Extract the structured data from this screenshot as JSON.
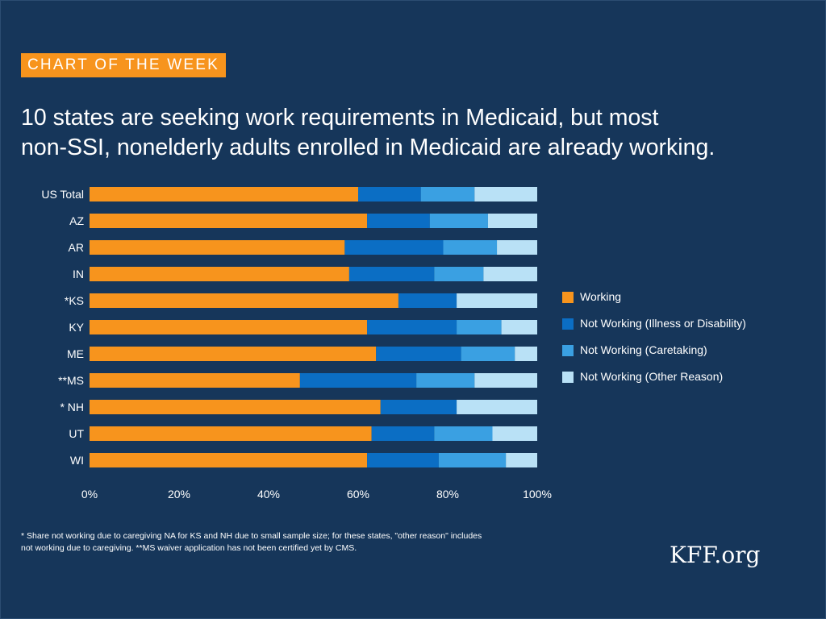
{
  "badge": "CHART OF THE WEEK",
  "headline": {
    "line1": "10 states are seeking work requirements in Medicaid, but most",
    "line2": "non-SSI, nonelderly adults enrolled in Medicaid are already working."
  },
  "footnote": {
    "line1": "* Share not working due to caregiving NA for KS and NH due to small sample size; for these states, \"other reason\" includes",
    "line2": "not working due to caregiving.  **MS waiver application has not been certified yet by CMS."
  },
  "logo": "KFF.org",
  "colors": {
    "background": "#16365a",
    "badge": "#f7941d",
    "working": "#f7941d",
    "illness": "#0b6ec4",
    "caretaking": "#3aa0e2",
    "other": "#b9e1f6"
  },
  "chart_data": {
    "type": "bar",
    "orientation": "horizontal",
    "stacked": true,
    "categories": [
      "US Total",
      "AZ",
      "AR",
      "IN",
      "*KS",
      "KY",
      "ME",
      "**MS",
      "*  NH",
      "UT",
      "WI"
    ],
    "series": [
      {
        "name": "Working",
        "color": "#f7941d",
        "values": [
          60,
          62,
          57,
          58,
          69,
          62,
          64,
          47,
          65,
          63,
          62
        ]
      },
      {
        "name": "Not Working (Illness or Disability)",
        "color": "#0b6ec4",
        "values": [
          14,
          14,
          22,
          19,
          13,
          20,
          19,
          26,
          17,
          14,
          16
        ]
      },
      {
        "name": "Not Working (Caretaking)",
        "color": "#3aa0e2",
        "values": [
          12,
          13,
          12,
          11,
          0,
          10,
          12,
          13,
          0,
          13,
          15
        ]
      },
      {
        "name": "Not Working (Other Reason)",
        "color": "#b9e1f6",
        "values": [
          14,
          11,
          9,
          12,
          18,
          8,
          5,
          14,
          18,
          10,
          7
        ]
      }
    ],
    "x_ticks": [
      "0%",
      "20%",
      "40%",
      "60%",
      "80%",
      "100%"
    ],
    "xlim": [
      0,
      100
    ],
    "legend_position": "right",
    "grid": false
  }
}
